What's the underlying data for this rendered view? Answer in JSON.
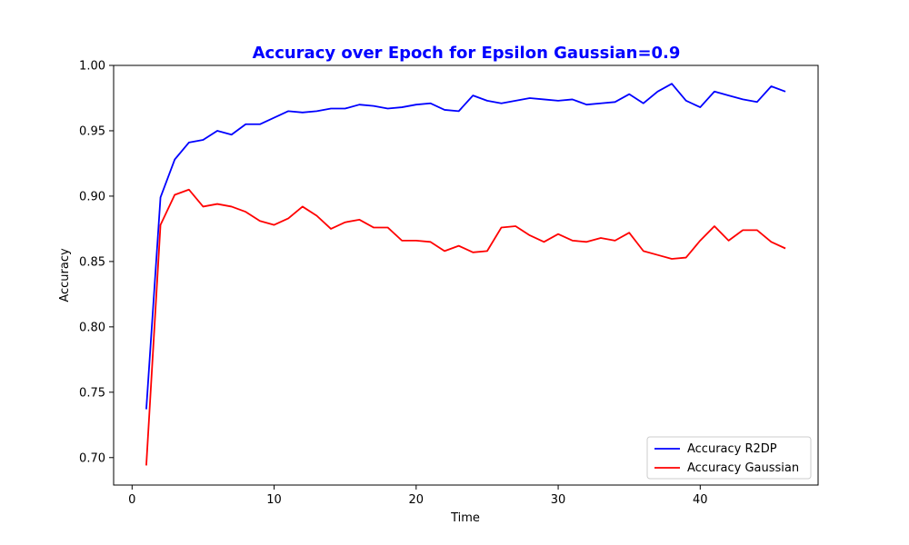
{
  "chart_data": {
    "type": "line",
    "title": "Accuracy over Epoch for Epsilon Gaussian=0.9",
    "title_color": "#0000ff",
    "xlabel": "Time",
    "ylabel": "Accuracy",
    "xlim": [
      -1.3,
      48.3
    ],
    "ylim": [
      0.679,
      1.0
    ],
    "x_ticks": [
      0,
      10,
      20,
      30,
      40
    ],
    "y_ticks": [
      0.7,
      0.75,
      0.8,
      0.85,
      0.9,
      0.95,
      1.0
    ],
    "y_tick_labels": [
      "0.70",
      "0.75",
      "0.80",
      "0.85",
      "0.90",
      "0.95",
      "1.00"
    ],
    "grid": false,
    "legend_position": "lower-right",
    "x": [
      1,
      2,
      3,
      4,
      5,
      6,
      7,
      8,
      9,
      10,
      11,
      12,
      13,
      14,
      15,
      16,
      17,
      18,
      19,
      20,
      21,
      22,
      23,
      24,
      25,
      26,
      27,
      28,
      29,
      30,
      31,
      32,
      33,
      34,
      35,
      36,
      37,
      38,
      39,
      40,
      41,
      42,
      43,
      44,
      45,
      46
    ],
    "series": [
      {
        "name": "Accuracy R2DP",
        "color": "#0000ff",
        "values": [
          0.737,
          0.899,
          0.928,
          0.941,
          0.943,
          0.95,
          0.947,
          0.955,
          0.955,
          0.96,
          0.965,
          0.964,
          0.965,
          0.967,
          0.967,
          0.97,
          0.969,
          0.967,
          0.968,
          0.97,
          0.971,
          0.966,
          0.965,
          0.977,
          0.973,
          0.971,
          0.973,
          0.975,
          0.974,
          0.973,
          0.974,
          0.97,
          0.971,
          0.972,
          0.978,
          0.971,
          0.98,
          0.986,
          0.973,
          0.968,
          0.98,
          0.977,
          0.974,
          0.972,
          0.984,
          0.98
        ]
      },
      {
        "name": "Accuracy Gaussian",
        "color": "#ff0000",
        "values": [
          0.694,
          0.878,
          0.901,
          0.905,
          0.892,
          0.894,
          0.892,
          0.888,
          0.881,
          0.878,
          0.883,
          0.892,
          0.885,
          0.875,
          0.88,
          0.882,
          0.876,
          0.876,
          0.866,
          0.866,
          0.865,
          0.858,
          0.862,
          0.857,
          0.858,
          0.876,
          0.877,
          0.87,
          0.865,
          0.871,
          0.866,
          0.865,
          0.868,
          0.866,
          0.872,
          0.858,
          0.855,
          0.852,
          0.853,
          0.866,
          0.877,
          0.866,
          0.874,
          0.874,
          0.865,
          0.86
        ]
      }
    ]
  }
}
